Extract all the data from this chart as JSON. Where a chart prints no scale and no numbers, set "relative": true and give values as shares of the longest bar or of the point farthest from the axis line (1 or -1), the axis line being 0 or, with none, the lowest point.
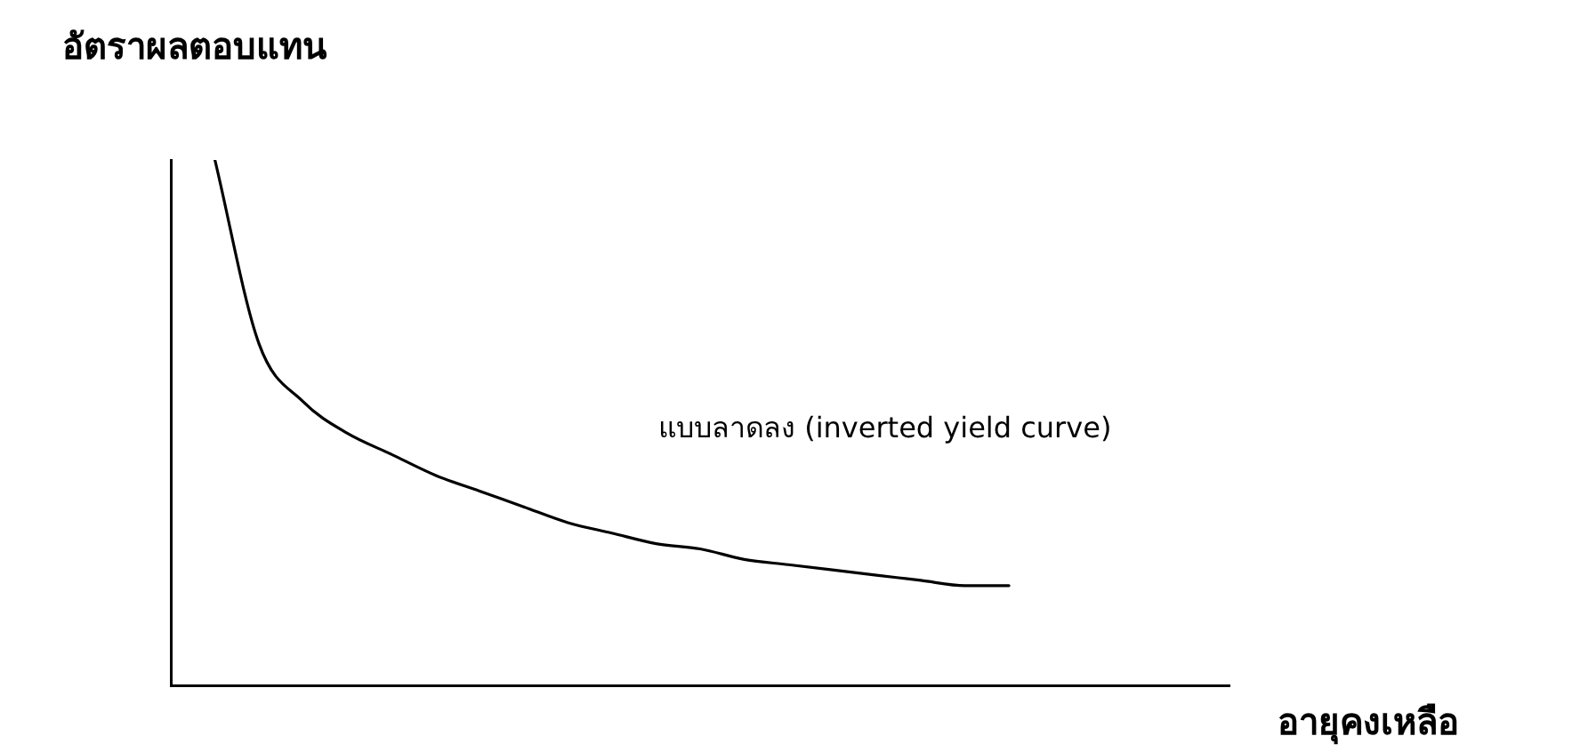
{
  "chart_data": {
    "type": "line",
    "relative": true,
    "ylabel": "อัตราผลตอบแทน",
    "xlabel": "อายุคงเหลือ",
    "annotations": [
      "แบบลาดลง (inverted yield curve)"
    ],
    "categories": [
      null,
      null,
      null,
      null,
      null,
      null,
      null,
      null,
      null,
      null,
      null,
      null,
      null,
      null,
      null,
      null,
      null,
      null,
      null,
      null,
      null,
      null,
      null,
      null,
      null
    ],
    "series": [
      {
        "color": "#000000",
        "values": [
          null,
          1.0,
          0.65,
          0.54,
          0.48,
          0.44,
          0.4,
          0.37,
          0.34,
          0.31,
          0.29,
          0.27,
          0.26,
          0.24,
          0.23,
          0.22,
          0.21,
          0.2,
          0.19,
          0.19,
          null,
          null,
          null,
          null,
          null
        ]
      }
    ],
    "grid": false,
    "legend": false,
    "marker": "none",
    "line_style": "solid"
  }
}
